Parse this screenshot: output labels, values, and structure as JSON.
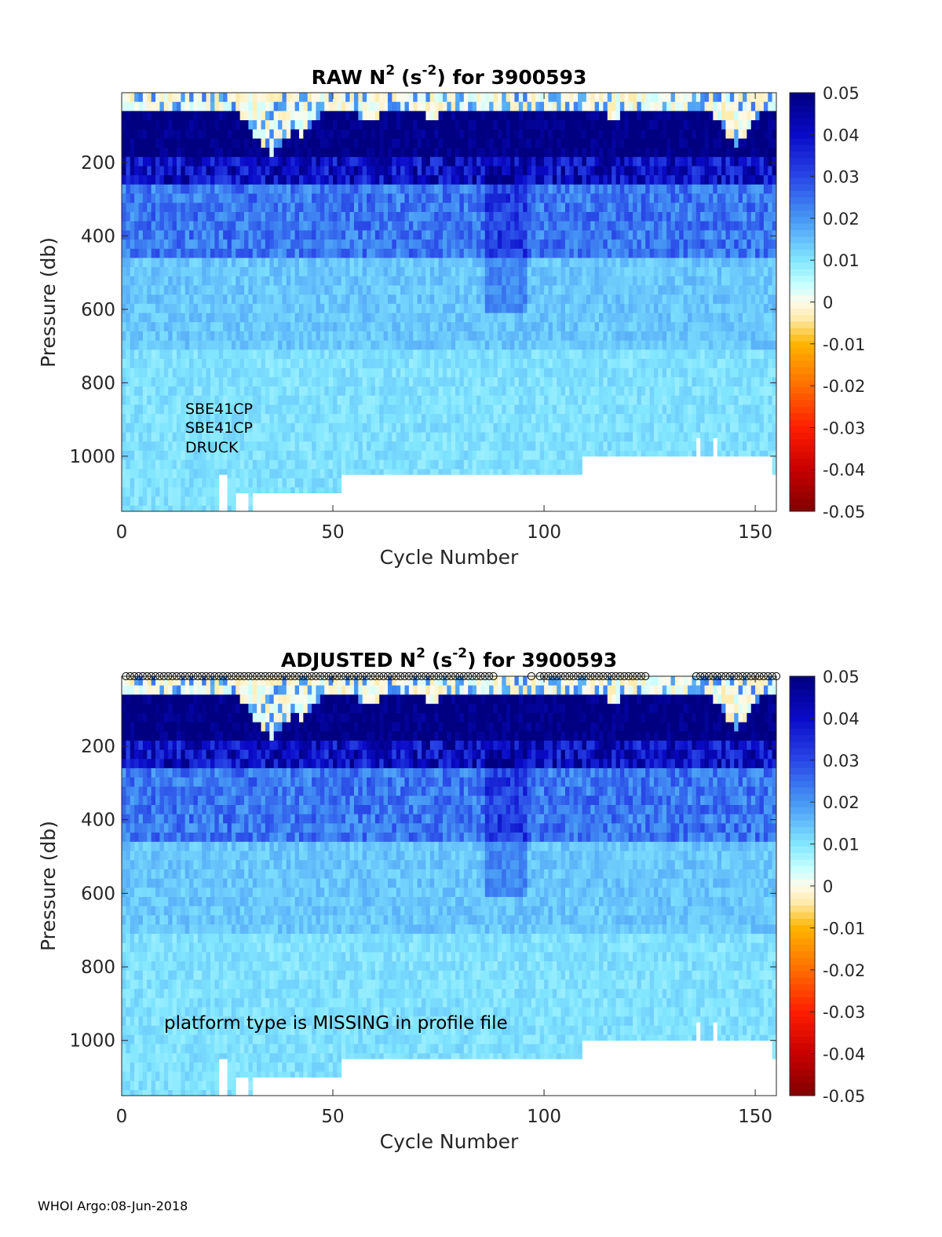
{
  "chart_data": [
    {
      "type": "heatmap",
      "title_prefix": "RAW N",
      "title_unit": "(s",
      "title_unit_sup": "-2",
      "title_suffix": ") for 3900593",
      "title_sup": "2",
      "xlabel": "Cycle Number",
      "ylabel": "Pressure (db)",
      "xlim": [
        0,
        155
      ],
      "ylim": [
        10,
        1150
      ],
      "x_ticks": [
        "0",
        "50",
        "100",
        "150"
      ],
      "x_tick_values": [
        0,
        50,
        100,
        150
      ],
      "y_ticks": [
        "200",
        "400",
        "600",
        "800",
        "1000"
      ],
      "y_tick_values": [
        200,
        400,
        600,
        800,
        1000
      ],
      "colorbar": {
        "range": [
          -0.05,
          0.05
        ],
        "tick_labels": [
          "0.05",
          "0.04",
          "0.03",
          "0.02",
          "0.01",
          "0",
          "-0.01",
          "-0.02",
          "-0.03",
          "-0.04",
          "-0.05"
        ],
        "tick_values": [
          0.05,
          0.04,
          0.03,
          0.02,
          0.01,
          0,
          -0.01,
          -0.02,
          -0.03,
          -0.04,
          -0.05
        ]
      },
      "annotations": [
        "SBE41CP",
        "SBE41CP",
        "DRUCK"
      ],
      "max_depth_segments": [
        {
          "from": 0,
          "to": 23,
          "depth": 1150
        },
        {
          "from": 23,
          "to": 25,
          "depth": 1050
        },
        {
          "from": 25,
          "to": 27,
          "depth": 1150
        },
        {
          "from": 27,
          "to": 30,
          "depth": 1100
        },
        {
          "from": 30,
          "to": 31,
          "depth": 1150
        },
        {
          "from": 31,
          "to": 52,
          "depth": 1100
        },
        {
          "from": 52,
          "to": 109,
          "depth": 1050
        },
        {
          "from": 109,
          "to": 136,
          "depth": 1000
        },
        {
          "from": 136,
          "to": 137,
          "depth": 950
        },
        {
          "from": 137,
          "to": 140,
          "depth": 1000
        },
        {
          "from": 140,
          "to": 141,
          "depth": 950
        },
        {
          "from": 141,
          "to": 142,
          "depth": 1000
        },
        {
          "from": 142,
          "to": 154,
          "depth": 1000
        },
        {
          "from": 154,
          "to": 155,
          "depth": 1050
        }
      ],
      "near_zero_surface": [
        {
          "center": 35,
          "width": 12,
          "depth": 170
        },
        {
          "center": 42,
          "width": 10,
          "depth": 120
        },
        {
          "center": 58,
          "width": 9,
          "depth": 80
        },
        {
          "center": 73,
          "width": 8,
          "depth": 75
        },
        {
          "center": 116,
          "width": 9,
          "depth": 70
        },
        {
          "center": 145,
          "width": 10,
          "depth": 140
        }
      ],
      "flagged_cycles": []
    },
    {
      "type": "heatmap",
      "title_prefix": "ADJUSTED N",
      "title_unit": "(s",
      "title_unit_sup": "-2",
      "title_suffix": ") for 3900593",
      "title_sup": "2",
      "xlabel": "Cycle Number",
      "ylabel": "Pressure (db)",
      "xlim": [
        0,
        155
      ],
      "ylim": [
        10,
        1150
      ],
      "x_ticks": [
        "0",
        "50",
        "100",
        "150"
      ],
      "x_tick_values": [
        0,
        50,
        100,
        150
      ],
      "y_ticks": [
        "200",
        "400",
        "600",
        "800",
        "1000"
      ],
      "y_tick_values": [
        200,
        400,
        600,
        800,
        1000
      ],
      "colorbar": {
        "range": [
          -0.05,
          0.05
        ],
        "tick_labels": [
          "0.05",
          "0.04",
          "0.03",
          "0.02",
          "0.01",
          "0",
          "-0.01",
          "-0.02",
          "-0.03",
          "-0.04",
          "-0.05"
        ],
        "tick_values": [
          0.05,
          0.04,
          0.03,
          0.02,
          0.01,
          0,
          -0.01,
          -0.02,
          -0.03,
          -0.04,
          -0.05
        ]
      },
      "annotations": [
        "platform type is MISSING in profile file"
      ],
      "max_depth_segments": [
        {
          "from": 0,
          "to": 23,
          "depth": 1150
        },
        {
          "from": 23,
          "to": 25,
          "depth": 1050
        },
        {
          "from": 25,
          "to": 27,
          "depth": 1150
        },
        {
          "from": 27,
          "to": 30,
          "depth": 1100
        },
        {
          "from": 30,
          "to": 31,
          "depth": 1150
        },
        {
          "from": 31,
          "to": 52,
          "depth": 1100
        },
        {
          "from": 52,
          "to": 109,
          "depth": 1050
        },
        {
          "from": 109,
          "to": 136,
          "depth": 1000
        },
        {
          "from": 136,
          "to": 137,
          "depth": 950
        },
        {
          "from": 137,
          "to": 140,
          "depth": 1000
        },
        {
          "from": 140,
          "to": 141,
          "depth": 950
        },
        {
          "from": 141,
          "to": 142,
          "depth": 1000
        },
        {
          "from": 142,
          "to": 154,
          "depth": 1000
        },
        {
          "from": 154,
          "to": 155,
          "depth": 1050
        }
      ],
      "near_zero_surface": [
        {
          "center": 35,
          "width": 12,
          "depth": 170
        },
        {
          "center": 42,
          "width": 10,
          "depth": 120
        },
        {
          "center": 58,
          "width": 9,
          "depth": 80
        },
        {
          "center": 73,
          "width": 8,
          "depth": 75
        },
        {
          "center": 116,
          "width": 9,
          "depth": 70
        },
        {
          "center": 145,
          "width": 10,
          "depth": 140
        }
      ],
      "flagged_cycles": [
        1,
        2,
        3,
        4,
        5,
        6,
        7,
        8,
        9,
        10,
        11,
        12,
        13,
        14,
        15,
        16,
        17,
        18,
        19,
        20,
        21,
        22,
        23,
        24,
        25,
        26,
        27,
        28,
        29,
        30,
        31,
        32,
        33,
        34,
        35,
        36,
        37,
        38,
        39,
        40,
        41,
        42,
        43,
        44,
        45,
        46,
        47,
        48,
        49,
        50,
        51,
        52,
        53,
        54,
        55,
        56,
        57,
        58,
        59,
        60,
        61,
        62,
        63,
        64,
        65,
        66,
        67,
        68,
        69,
        70,
        71,
        72,
        73,
        74,
        75,
        76,
        77,
        78,
        79,
        80,
        81,
        82,
        83,
        84,
        85,
        86,
        87,
        88,
        97,
        99,
        100,
        101,
        102,
        103,
        104,
        105,
        106,
        107,
        108,
        109,
        110,
        111,
        112,
        113,
        114,
        115,
        116,
        117,
        118,
        119,
        120,
        121,
        122,
        123,
        124,
        136,
        137,
        138,
        139,
        140,
        141,
        142,
        143,
        144,
        145,
        146,
        147,
        148,
        149,
        150,
        151,
        152,
        153,
        154,
        155
      ]
    }
  ],
  "footer": "WHOI Argo:08-Jun-2018"
}
